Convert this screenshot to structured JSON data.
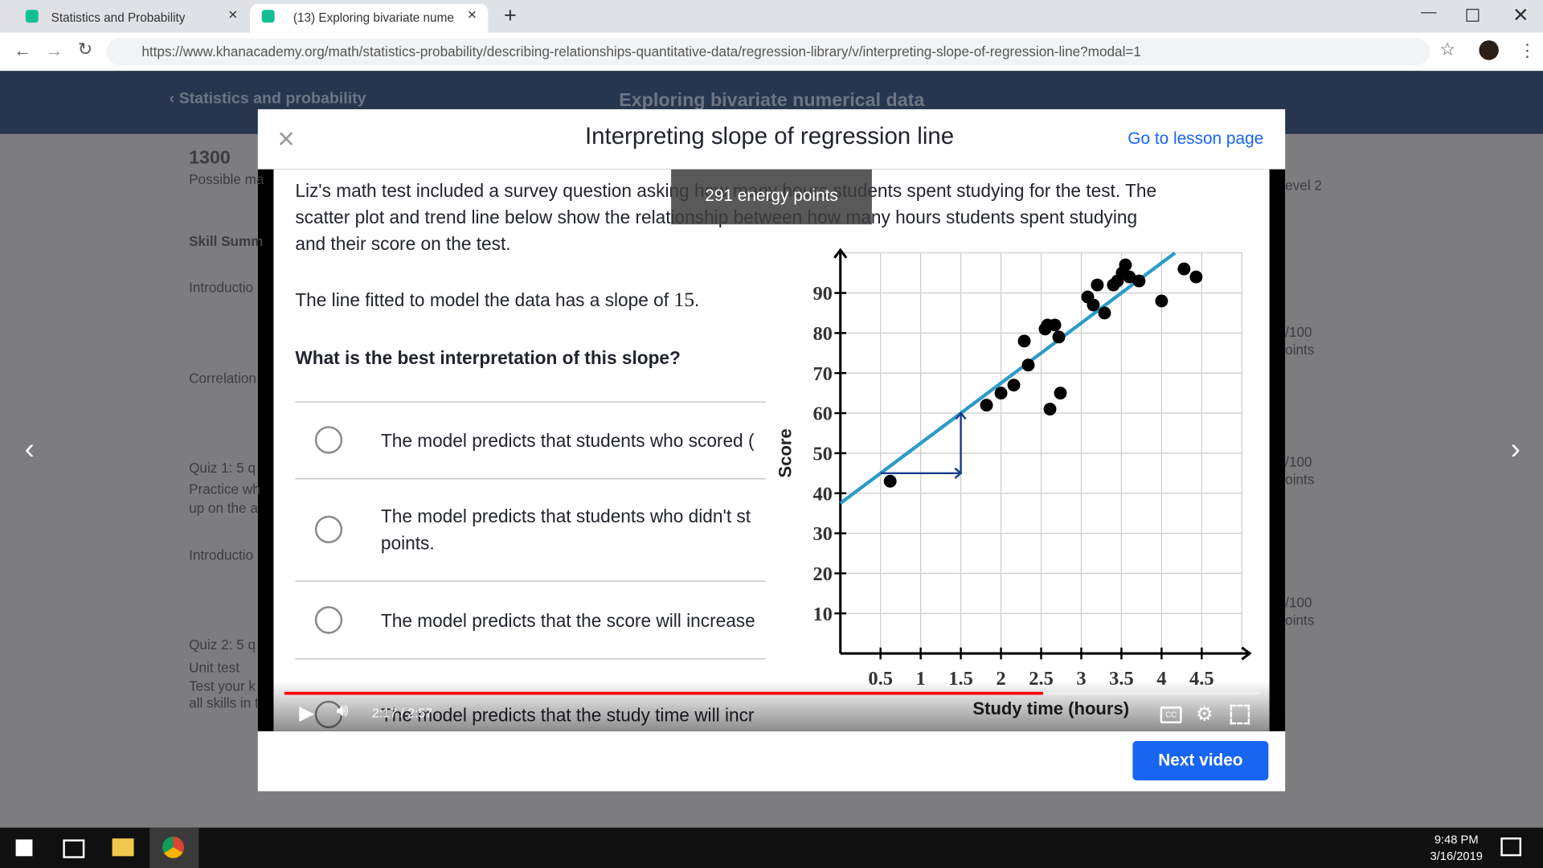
{
  "browser": {
    "tabs": [
      "Statistics and Probability | Khan A",
      "(13) Exploring bivariate nume"
    ],
    "url": "https://www.khanacademy.org/math/statistics-probability/describing-relationships-quantitative-data/regression-library/v/interpreting-slope-of-regression-line?modal=1"
  },
  "page": {
    "breadcrumb": "Statistics and probability",
    "unit_title": "Exploring bivariate numerical data",
    "points": "1300",
    "points_caption": "Possible ma",
    "sidebar": [
      "Skill Summ",
      "Introductio",
      "Correlation",
      "Quiz 1: 5 q",
      "Practice wh",
      "up on the a",
      "Introductio",
      "Quiz 2: 5 q",
      "Unit test",
      "Test your k",
      "all skills in t"
    ],
    "level": "evel 2",
    "right_labels": [
      "/100",
      "oints",
      "/100",
      "oints",
      "/100",
      "oints"
    ]
  },
  "modal": {
    "title": "Interpreting slope of regression line",
    "lesson_link": "Go to lesson page",
    "next_button": "Next video",
    "video": {
      "tooltip": "291 energy points",
      "intro": [
        "Liz's math test included a survey question asking how many hours students spent studying for the test. The",
        "scatter plot and trend line below show the relationship between how many hours students spent studying",
        "and their score on the test."
      ],
      "slope_text": "The line fitted to model the data has a slope of",
      "slope": 15,
      "slope_end": ".",
      "question": "What is the best interpretation of this slope?",
      "options": [
        [
          "The model predicts that students who scored ("
        ],
        [
          "The model predicts that students who didn't st",
          "points."
        ],
        [
          "The model predicts that the score will increase"
        ],
        [
          "The model predicts that the study time will incr"
        ]
      ],
      "time": "2:17 / 2:57",
      "chart": {
        "type": "scatter",
        "x_label": "Study time (hours)",
        "y_label": "Score",
        "x": [
          0.62,
          1.82,
          2.0,
          2.16,
          2.29,
          2.34,
          2.55,
          2.58,
          2.67,
          2.72,
          2.61,
          2.74,
          3.08,
          3.15,
          3.2,
          3.29,
          3.4,
          3.45,
          3.51,
          3.55,
          3.6,
          3.72,
          4.0,
          4.28,
          4.43
        ],
        "y": [
          43,
          62,
          65,
          67,
          78,
          72,
          81,
          82,
          82,
          79,
          61,
          65,
          89,
          87,
          92,
          85,
          92,
          93,
          95,
          97,
          94,
          93,
          88,
          96,
          94
        ],
        "color": "#000000",
        "trend_intercept": 37.5,
        "trend_color": "#2a9bc9",
        "xlim": [
          0,
          5
        ],
        "ylim": [
          0,
          100
        ],
        "xticks": [
          0.5,
          1,
          1.5,
          2,
          2.5,
          3,
          3.5,
          4,
          4.5
        ],
        "yticks": [
          10,
          20,
          30,
          40,
          50,
          60,
          70,
          80,
          90
        ],
        "grid": true
      }
    }
  },
  "taskbar": {
    "time": "9:48 PM",
    "date": "3/16/2019"
  }
}
